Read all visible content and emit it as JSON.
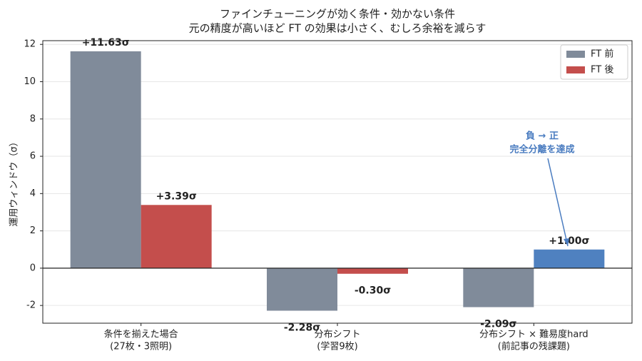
{
  "chart_data": {
    "type": "bar",
    "title": "ファインチューニングが効く条件・効かない条件",
    "subtitle": "元の精度が高いほど FT の効果は小さく、むしろ余裕を減らす",
    "ylabel": "運用ウィンドウ（σ）",
    "categories": [
      [
        "条件を揃えた場合",
        "(27枚・3照明)"
      ],
      [
        "分布シフト",
        "(学習9枚)"
      ],
      [
        "分布シフト × 難易度hard",
        "(前記事の残課題)"
      ]
    ],
    "series": [
      {
        "name": "FT 前",
        "color": "#808b9a",
        "values": [
          11.63,
          -2.28,
          -2.09
        ],
        "value_labels": [
          "+11.63σ",
          "-2.28σ",
          "-2.09σ"
        ]
      },
      {
        "name": "FT 後",
        "color": "#c44e4c",
        "colors": [
          "#c44e4c",
          "#c44e4c",
          "#4f81c0"
        ],
        "values": [
          3.39,
          -0.3,
          1.0
        ],
        "value_labels": [
          "+3.39σ",
          "-0.30σ",
          "+1.00σ"
        ]
      }
    ],
    "annotation": [
      "負 → 正",
      "完全分離を達成"
    ],
    "ylim": [
      -2.95,
      12.2
    ],
    "yticks": [
      -2,
      0,
      2,
      4,
      6,
      8,
      10,
      12
    ],
    "grid": true,
    "legend": "upper right"
  }
}
